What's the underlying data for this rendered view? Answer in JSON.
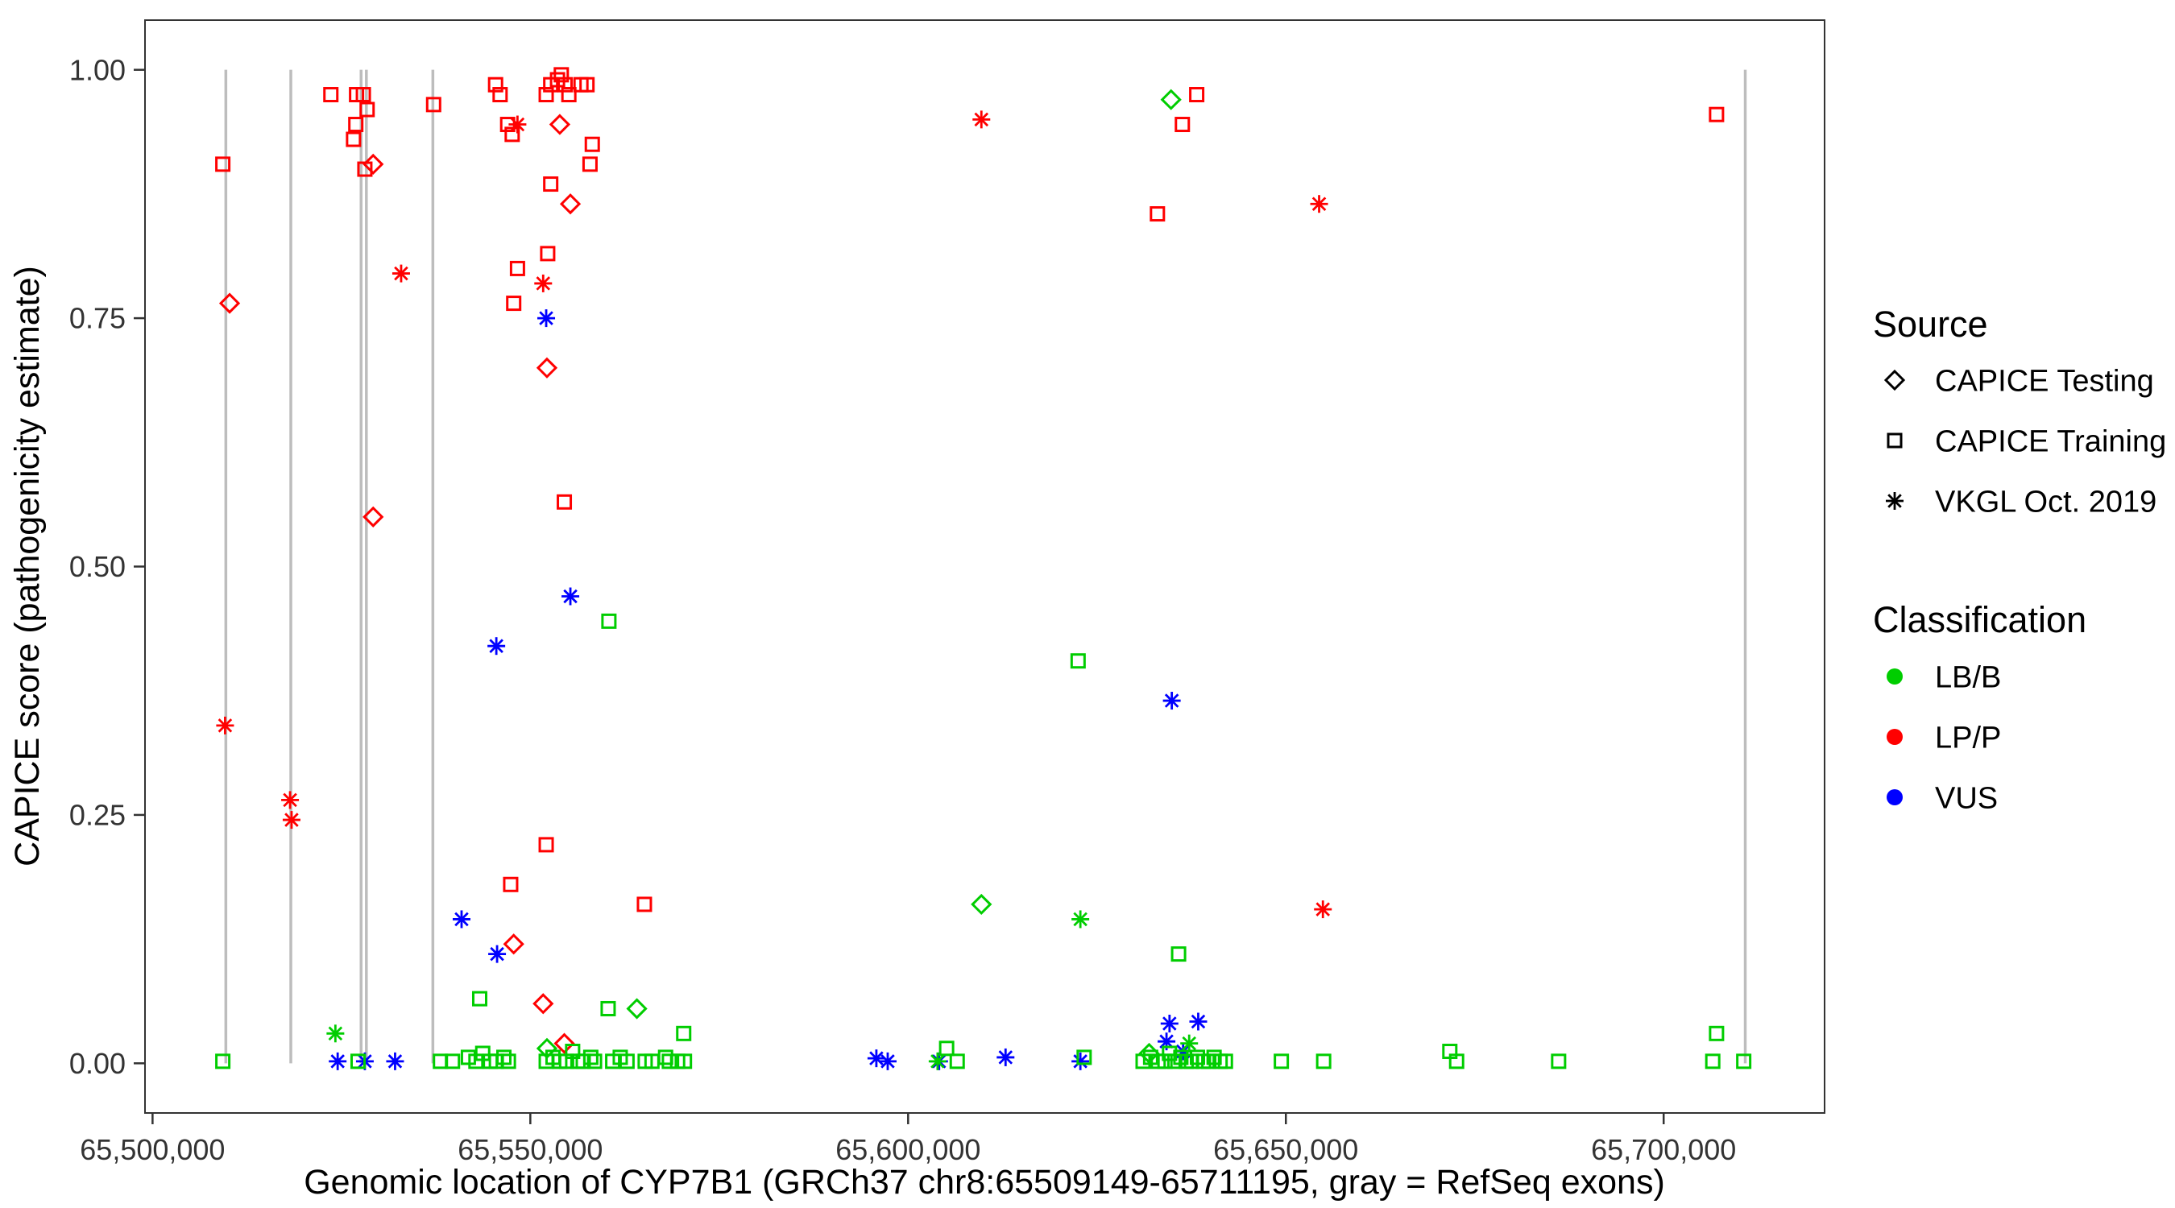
{
  "chart_data": {
    "type": "scatter",
    "title": "",
    "xlabel": "Genomic location of CYP7B1 (GRCh37 chr8:65509149-65711195, gray = RefSeq exons)",
    "ylabel": "CAPICE score (pathogenicity estimate)",
    "xlim": [
      65499000,
      65721300
    ],
    "ylim": [
      -0.05,
      1.05
    ],
    "grid": false,
    "legend_position": "right",
    "x_ticks": [
      {
        "value": 65500000,
        "label": "65,500,000"
      },
      {
        "value": 65550000,
        "label": "65,550,000"
      },
      {
        "value": 65600000,
        "label": "65,600,000"
      },
      {
        "value": 65650000,
        "label": "65,650,000"
      },
      {
        "value": 65700000,
        "label": "65,700,000"
      }
    ],
    "y_ticks": [
      {
        "value": 0.0,
        "label": "0.00"
      },
      {
        "value": 0.25,
        "label": "0.25"
      },
      {
        "value": 0.5,
        "label": "0.50"
      },
      {
        "value": 0.75,
        "label": "0.75"
      },
      {
        "value": 1.0,
        "label": "1.00"
      }
    ],
    "exons": {
      "color": "#BDBDBD",
      "note": "gray vertical lines = RefSeq exons",
      "positions": [
        65509700,
        65518300,
        65527600,
        65528300,
        65537100,
        65710800
      ]
    },
    "classification_colors": {
      "LB/B": "#00CD00",
      "LP/P": "#FF0000",
      "VUS": "#0000FF"
    },
    "source_shapes": {
      "CAPICE Testing": "diamond",
      "CAPICE Training": "square",
      "VKGL Oct. 2019": "asterisk"
    },
    "legend": {
      "source": {
        "title": "Source",
        "items": [
          {
            "label": "CAPICE Testing",
            "shape": "diamond"
          },
          {
            "label": "CAPICE Training",
            "shape": "square"
          },
          {
            "label": "VKGL Oct. 2019",
            "shape": "asterisk"
          }
        ]
      },
      "classification": {
        "title": "Classification",
        "items": [
          {
            "label": "LB/B",
            "color": "#00CD00"
          },
          {
            "label": "LP/P",
            "color": "#FF0000"
          },
          {
            "label": "VUS",
            "color": "#0000FF"
          }
        ]
      }
    },
    "series": [
      {
        "source": "CAPICE Training",
        "classification": "LP/P",
        "shape": "square",
        "points": [
          [
            65509300,
            0.905
          ],
          [
            65523600,
            0.975
          ],
          [
            65527000,
            0.975
          ],
          [
            65527900,
            0.975
          ],
          [
            65528400,
            0.96
          ],
          [
            65526900,
            0.945
          ],
          [
            65526600,
            0.93
          ],
          [
            65528100,
            0.9
          ],
          [
            65537200,
            0.965
          ],
          [
            65545400,
            0.985
          ],
          [
            65546000,
            0.975
          ],
          [
            65547000,
            0.945
          ],
          [
            65547600,
            0.935
          ],
          [
            65548300,
            0.8
          ],
          [
            65547800,
            0.765
          ],
          [
            65552100,
            0.975
          ],
          [
            65552700,
            0.985
          ],
          [
            65553600,
            0.99
          ],
          [
            65554100,
            0.995
          ],
          [
            65554600,
            0.985
          ],
          [
            65555100,
            0.975
          ],
          [
            65556700,
            0.985
          ],
          [
            65557500,
            0.985
          ],
          [
            65558200,
            0.925
          ],
          [
            65557900,
            0.905
          ],
          [
            65552700,
            0.885
          ],
          [
            65552300,
            0.815
          ],
          [
            65554500,
            0.565
          ],
          [
            65552100,
            0.22
          ],
          [
            65547400,
            0.18
          ],
          [
            65565100,
            0.16
          ],
          [
            65633000,
            0.855
          ],
          [
            65636300,
            0.945
          ],
          [
            65638200,
            0.975
          ],
          [
            65707000,
            0.955
          ]
        ]
      },
      {
        "source": "CAPICE Testing",
        "classification": "LP/P",
        "shape": "diamond",
        "points": [
          [
            65510200,
            0.765
          ],
          [
            65529200,
            0.905
          ],
          [
            65529200,
            0.55
          ],
          [
            65553900,
            0.945
          ],
          [
            65555300,
            0.865
          ],
          [
            65552200,
            0.7
          ],
          [
            65547800,
            0.12
          ],
          [
            65551700,
            0.06
          ],
          [
            65554500,
            0.02
          ]
        ]
      },
      {
        "source": "VKGL Oct. 2019",
        "classification": "LP/P",
        "shape": "asterisk",
        "points": [
          [
            65509600,
            0.34
          ],
          [
            65518200,
            0.265
          ],
          [
            65518400,
            0.245
          ],
          [
            65532900,
            0.795
          ],
          [
            65548300,
            0.945
          ],
          [
            65551700,
            0.785
          ],
          [
            65609700,
            0.95
          ],
          [
            65654400,
            0.865
          ],
          [
            65654900,
            0.155
          ]
        ]
      },
      {
        "source": "VKGL Oct. 2019",
        "classification": "VUS",
        "shape": "asterisk",
        "points": [
          [
            65552100,
            0.75
          ],
          [
            65555300,
            0.47
          ],
          [
            65545500,
            0.42
          ],
          [
            65540900,
            0.145
          ],
          [
            65545600,
            0.11
          ],
          [
            65634900,
            0.365
          ],
          [
            65524500,
            0.002
          ],
          [
            65528100,
            0.002
          ],
          [
            65532100,
            0.002
          ],
          [
            65595800,
            0.005
          ],
          [
            65597300,
            0.002
          ],
          [
            65604100,
            0.002
          ],
          [
            65612900,
            0.006
          ],
          [
            65622800,
            0.002
          ],
          [
            65634600,
            0.04
          ],
          [
            65638400,
            0.042
          ],
          [
            65634200,
            0.022
          ],
          [
            65636400,
            0.012
          ]
        ]
      },
      {
        "source": "CAPICE Training",
        "classification": "LB/B",
        "shape": "square",
        "points": [
          [
            65560400,
            0.445
          ],
          [
            65622500,
            0.405
          ],
          [
            65635800,
            0.11
          ],
          [
            65543300,
            0.065
          ],
          [
            65560300,
            0.055
          ],
          [
            65570300,
            0.03
          ],
          [
            65707000,
            0.03
          ],
          [
            65671700,
            0.012
          ],
          [
            65509300,
            0.002
          ],
          [
            65527200,
            0.002
          ],
          [
            65538100,
            0.002
          ],
          [
            65539700,
            0.002
          ],
          [
            65541800,
            0.006
          ],
          [
            65542800,
            0.002
          ],
          [
            65543700,
            0.01
          ],
          [
            65544700,
            0.002
          ],
          [
            65545500,
            0.002
          ],
          [
            65546500,
            0.006
          ],
          [
            65547100,
            0.002
          ],
          [
            65552100,
            0.002
          ],
          [
            65553000,
            0.006
          ],
          [
            65553900,
            0.002
          ],
          [
            65554800,
            0.002
          ],
          [
            65555600,
            0.012
          ],
          [
            65556300,
            0.002
          ],
          [
            65557000,
            0.002
          ],
          [
            65558000,
            0.006
          ],
          [
            65558500,
            0.002
          ],
          [
            65560900,
            0.002
          ],
          [
            65561900,
            0.006
          ],
          [
            65562800,
            0.002
          ],
          [
            65565200,
            0.002
          ],
          [
            65566100,
            0.002
          ],
          [
            65567900,
            0.006
          ],
          [
            65568400,
            0.002
          ],
          [
            65569500,
            0.002
          ],
          [
            65570400,
            0.002
          ],
          [
            65605100,
            0.015
          ],
          [
            65606500,
            0.002
          ],
          [
            65623300,
            0.006
          ],
          [
            65631100,
            0.002
          ],
          [
            65632100,
            0.006
          ],
          [
            65633100,
            0.002
          ],
          [
            65634000,
            0.002
          ],
          [
            65634600,
            0.01
          ],
          [
            65635300,
            0.002
          ],
          [
            65636100,
            0.006
          ],
          [
            65636800,
            0.002
          ],
          [
            65637500,
            0.002
          ],
          [
            65638300,
            0.006
          ],
          [
            65639100,
            0.002
          ],
          [
            65639800,
            0.002
          ],
          [
            65640500,
            0.006
          ],
          [
            65641300,
            0.002
          ],
          [
            65642000,
            0.002
          ],
          [
            65649400,
            0.002
          ],
          [
            65655000,
            0.002
          ],
          [
            65672600,
            0.002
          ],
          [
            65686100,
            0.002
          ],
          [
            65706500,
            0.002
          ],
          [
            65710600,
            0.002
          ]
        ]
      },
      {
        "source": "CAPICE Testing",
        "classification": "LB/B",
        "shape": "diamond",
        "points": [
          [
            65634800,
            0.97
          ],
          [
            65609700,
            0.16
          ],
          [
            65564100,
            0.055
          ],
          [
            65552200,
            0.015
          ],
          [
            65631900,
            0.01
          ]
        ]
      },
      {
        "source": "VKGL Oct. 2019",
        "classification": "LB/B",
        "shape": "asterisk",
        "points": [
          [
            65524200,
            0.03
          ],
          [
            65622800,
            0.145
          ],
          [
            65603900,
            0.002
          ],
          [
            65637200,
            0.02
          ]
        ]
      }
    ]
  }
}
